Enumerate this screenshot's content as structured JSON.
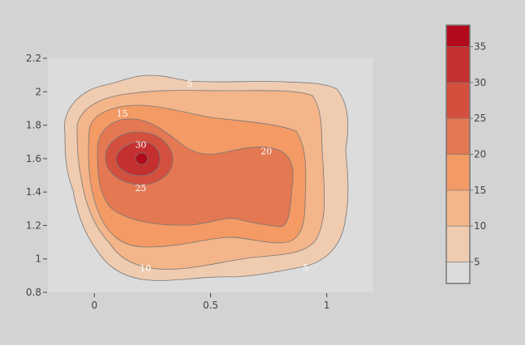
{
  "chart_data": {
    "type": "contour",
    "title": "",
    "xlabel": "",
    "ylabel": "",
    "xlim": [
      -0.2,
      1.2
    ],
    "ylim": [
      0.8,
      2.2
    ],
    "x_ticks": [
      0,
      0.5,
      1
    ],
    "x_tick_labels": [
      "0",
      "0.5",
      "1"
    ],
    "y_ticks": [
      0.8,
      1,
      1.2,
      1.4,
      1.6,
      1.8,
      2,
      2.2
    ],
    "y_tick_labels": [
      "0.8",
      "1",
      "1.2",
      "1.4",
      "1.6",
      "1.8",
      "2",
      "2.2"
    ],
    "levels": [
      5,
      10,
      15,
      20,
      25,
      30,
      35
    ],
    "level_colors": [
      "#dcdcdc",
      "#efcbb0",
      "#f3b589",
      "#f39a65",
      "#e37852",
      "#d3503f",
      "#c3302f",
      "#b20a1c"
    ],
    "colorbar_ticks": [
      5,
      10,
      15,
      20,
      25,
      30,
      35
    ],
    "colorbar_tick_labels": [
      "5",
      "10",
      "15",
      "20",
      "25",
      "30",
      "35"
    ],
    "colorbar_range": [
      2,
      38
    ],
    "contour_labels": [
      {
        "text": "5",
        "x": 0.41,
        "y": 2.05
      },
      {
        "text": "5",
        "x": 0.91,
        "y": 0.95
      },
      {
        "text": "10",
        "x": 0.22,
        "y": 0.945
      },
      {
        "text": "15",
        "x": 0.12,
        "y": 1.87
      },
      {
        "text": "20",
        "x": 0.74,
        "y": 1.645
      },
      {
        "text": "25",
        "x": 0.2,
        "y": 1.425
      },
      {
        "text": "30",
        "x": 0.2,
        "y": 1.685
      }
    ],
    "peak": {
      "x": 0.2,
      "y": 1.6
    }
  }
}
